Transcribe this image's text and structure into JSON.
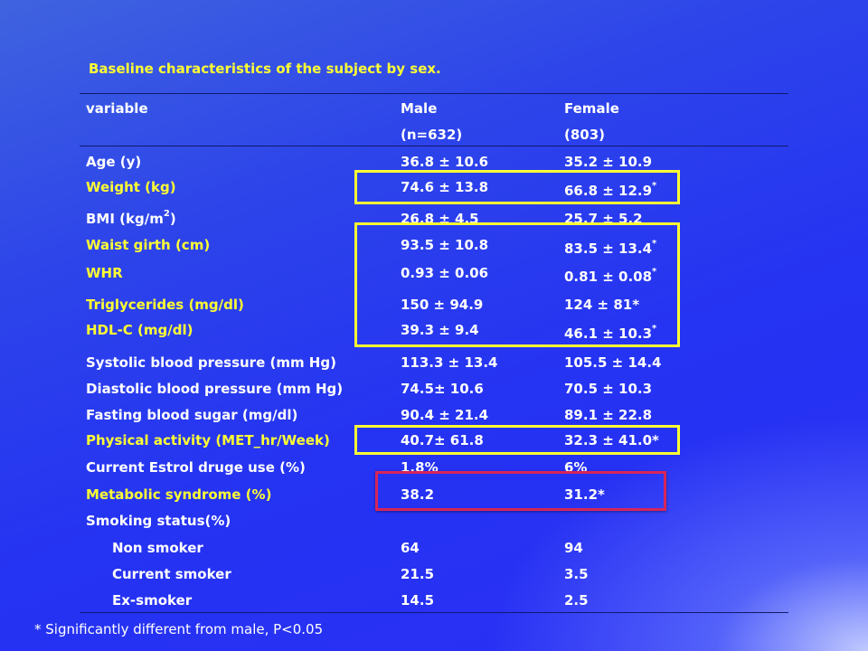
{
  "title": "Baseline characteristics of the subject by sex.",
  "header": {
    "variable": "variable",
    "male": "Male",
    "male_n": "(n=632)",
    "female": "Female",
    "female_n": "(803)"
  },
  "rows": [
    {
      "label": "Age (y)",
      "male": "36.8 ± 10.6",
      "female": "35.2 ± 10.9",
      "sig": ""
    },
    {
      "label": "Weight (kg)",
      "male": "74.6 ± 13.8",
      "female": "66.8 ± 12.9",
      "sig": "*"
    },
    {
      "label_pre": "BMI (kg/m",
      "label_sup": "2",
      "label_post": ")",
      "male": "26.8 ± 4.5",
      "female": "25.7 ± 5.2",
      "sig": ""
    },
    {
      "label": "Waist girth (cm)",
      "male": "93.5 ± 10.8",
      "female": "83.5 ± 13.4",
      "sig": "*"
    },
    {
      "label": "WHR",
      "male": "0.93 ± 0.06",
      "female": "0.81 ± 0.08",
      "sig": "*"
    },
    {
      "label": "Triglycerides (mg/dl)",
      "male": "150 ± 94.9",
      "female": "124 ± 81*",
      "sig": ""
    },
    {
      "label": "HDL-C (mg/dl)",
      "male": "39.3 ± 9.4",
      "female": "46.1 ± 10.3",
      "sig": "*"
    },
    {
      "label": "Systolic blood pressure (mm Hg)",
      "male": "113.3 ± 13.4",
      "female": "105.5 ± 14.4",
      "sig": ""
    },
    {
      "label": "Diastolic blood pressure (mm Hg)",
      "male": "74.5± 10.6",
      "female": "70.5 ± 10.3",
      "sig": ""
    },
    {
      "label": "Fasting blood sugar (mg/dl)",
      "male": "90.4 ± 21.4",
      "female": "89.1 ± 22.8",
      "sig": ""
    },
    {
      "label": "Physical activity (MET_hr/Week)",
      "male": "40.7± 61.8",
      "female": "32.3 ± 41.0*",
      "sig": ""
    },
    {
      "label": "Current Estrol druge use (%)",
      "male": "1.8%",
      "female": "6%",
      "sig": ""
    },
    {
      "label": "Metabolic syndrome (%)",
      "male": "38.2",
      "female": "31.2*",
      "sig": ""
    },
    {
      "label": "Smoking status(%)",
      "male": "",
      "female": "",
      "sig": ""
    },
    {
      "label": "Non smoker",
      "male": "64",
      "female": "94",
      "sig": ""
    },
    {
      "label": "Current smoker",
      "male": "21.5",
      "female": "3.5",
      "sig": ""
    },
    {
      "label": "Ex-smoker",
      "male": "14.5",
      "female": "2.5",
      "sig": ""
    }
  ],
  "footnote": "* Significantly different from male, P<0.05",
  "colors": {
    "highlight_text": "#ffff33",
    "box_yellow": "#ffff33",
    "box_red": "#d6255a",
    "background": "#2533f2"
  }
}
